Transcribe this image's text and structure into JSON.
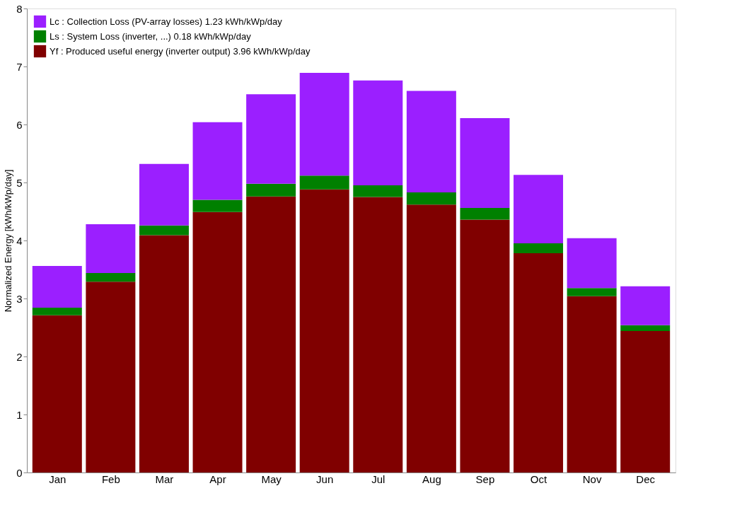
{
  "chart_data": {
    "type": "bar",
    "stacked": true,
    "ylabel": "Normalized Energy [kWh/kWp/day]",
    "categories": [
      "Jan",
      "Feb",
      "Mar",
      "Apr",
      "May",
      "Jun",
      "Jul",
      "Aug",
      "Sep",
      "Oct",
      "Nov",
      "Dec"
    ],
    "series": [
      {
        "name": "Yf : Produced useful energy  (inverter output)  3.96 kWh/kWp/day",
        "color": "#800000",
        "values": [
          2.71,
          3.29,
          4.09,
          4.49,
          4.76,
          4.88,
          4.75,
          4.62,
          4.36,
          3.78,
          3.04,
          2.44
        ]
      },
      {
        "name": "Ls : System Loss  (inverter, ...)  0.18 kWh/kWp/day",
        "color": "#008000",
        "values": [
          0.13,
          0.15,
          0.17,
          0.21,
          0.22,
          0.24,
          0.2,
          0.21,
          0.2,
          0.17,
          0.14,
          0.1
        ]
      },
      {
        "name": "Lc : Collection Loss (PV-array losses)  1.23 kWh/kWp/day",
        "color": "#9b1fff",
        "values": [
          0.72,
          0.84,
          1.06,
          1.34,
          1.54,
          1.77,
          1.81,
          1.75,
          1.55,
          1.18,
          0.86,
          0.67
        ]
      }
    ],
    "ylim": [
      0,
      8
    ],
    "yticks": [
      0,
      1,
      2,
      3,
      4,
      5,
      6,
      7,
      8
    ],
    "grid": false,
    "legend": "top left"
  }
}
